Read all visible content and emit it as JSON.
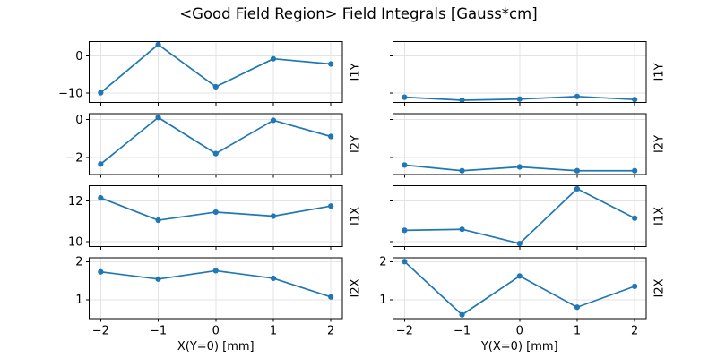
{
  "figure": {
    "title": "<Good Field Region> Field Integrals [Gauss*cm]",
    "background_color": "#ffffff",
    "line_color": "#1f77b4",
    "marker_color": "#1f77b4",
    "grid_color": "#e3e3e3",
    "spine_color": "#000000",
    "xlabel_left": "X(Y=0) [mm]",
    "xlabel_right": "Y(X=0) [mm]",
    "row_labels": [
      "I1Y",
      "I2Y",
      "I1X",
      "I2X"
    ]
  },
  "chart_data": [
    {
      "id": "i1y-vs-x",
      "type": "line",
      "row": 0,
      "col": 0,
      "ylabel_right": "I1Y",
      "x": [
        -2,
        -1,
        0,
        1,
        2
      ],
      "y": [
        -9.9,
        3.0,
        -8.3,
        -0.8,
        -2.2
      ],
      "xlim": [
        -2.2,
        2.2
      ],
      "ylim": [
        -12.5,
        3.8
      ],
      "xticks": [
        -2,
        -1,
        0,
        1,
        2
      ],
      "yticks": [
        0,
        -10
      ],
      "xtick_labels": [
        "−2",
        "−1",
        "0",
        "1",
        "2"
      ],
      "ytick_labels": [
        "0",
        "−10"
      ],
      "show_xtick_labels": false,
      "show_ytick_labels": true,
      "grid": true
    },
    {
      "id": "i1y-vs-y",
      "type": "line",
      "row": 0,
      "col": 1,
      "ylabel_right": "I1Y",
      "x": [
        -2,
        -1,
        0,
        1,
        2
      ],
      "y": [
        -11.1,
        -11.9,
        -11.6,
        -10.9,
        -11.7
      ],
      "xlim": [
        -2.2,
        2.2
      ],
      "ylim": [
        -12.5,
        3.8
      ],
      "xticks": [
        -2,
        -1,
        0,
        1,
        2
      ],
      "yticks": [
        0,
        -10
      ],
      "xtick_labels": [
        "−2",
        "−1",
        "0",
        "1",
        "2"
      ],
      "ytick_labels": [
        "0",
        "−10"
      ],
      "show_xtick_labels": false,
      "show_ytick_labels": false,
      "grid": true
    },
    {
      "id": "i2y-vs-x",
      "type": "line",
      "row": 1,
      "col": 0,
      "ylabel_right": "I2Y",
      "x": [
        -2,
        -1,
        0,
        1,
        2
      ],
      "y": [
        -2.35,
        0.1,
        -1.8,
        -0.05,
        -0.9
      ],
      "xlim": [
        -2.2,
        2.2
      ],
      "ylim": [
        -2.9,
        0.3
      ],
      "xticks": [
        -2,
        -1,
        0,
        1,
        2
      ],
      "yticks": [
        0,
        -2
      ],
      "xtick_labels": [
        "−2",
        "−1",
        "0",
        "1",
        "2"
      ],
      "ytick_labels": [
        "0",
        "−2"
      ],
      "show_xtick_labels": false,
      "show_ytick_labels": true,
      "grid": true
    },
    {
      "id": "i2y-vs-y",
      "type": "line",
      "row": 1,
      "col": 1,
      "ylabel_right": "I2Y",
      "x": [
        -2,
        -1,
        0,
        1,
        2
      ],
      "y": [
        -2.4,
        -2.7,
        -2.5,
        -2.7,
        -2.7
      ],
      "xlim": [
        -2.2,
        2.2
      ],
      "ylim": [
        -2.9,
        0.3
      ],
      "xticks": [
        -2,
        -1,
        0,
        1,
        2
      ],
      "yticks": [
        0,
        -2
      ],
      "xtick_labels": [
        "−2",
        "−1",
        "0",
        "1",
        "2"
      ],
      "ytick_labels": [
        "0",
        "−2"
      ],
      "show_xtick_labels": false,
      "show_ytick_labels": false,
      "grid": true
    },
    {
      "id": "i1x-vs-x",
      "type": "line",
      "row": 2,
      "col": 0,
      "ylabel_right": "I1X",
      "x": [
        -2,
        -1,
        0,
        1,
        2
      ],
      "y": [
        12.15,
        11.05,
        11.45,
        11.25,
        11.75
      ],
      "xlim": [
        -2.2,
        2.2
      ],
      "ylim": [
        9.75,
        12.75
      ],
      "xticks": [
        -2,
        -1,
        0,
        1,
        2
      ],
      "yticks": [
        12,
        10
      ],
      "xtick_labels": [
        "−2",
        "−1",
        "0",
        "1",
        "2"
      ],
      "ytick_labels": [
        "12",
        "10"
      ],
      "show_xtick_labels": false,
      "show_ytick_labels": true,
      "grid": true
    },
    {
      "id": "i1x-vs-y",
      "type": "line",
      "row": 2,
      "col": 1,
      "ylabel_right": "I1X",
      "x": [
        -2,
        -1,
        0,
        1,
        2
      ],
      "y": [
        10.55,
        10.6,
        9.9,
        12.6,
        11.15
      ],
      "xlim": [
        -2.2,
        2.2
      ],
      "ylim": [
        9.75,
        12.75
      ],
      "xticks": [
        -2,
        -1,
        0,
        1,
        2
      ],
      "yticks": [
        12,
        10
      ],
      "xtick_labels": [
        "−2",
        "−1",
        "0",
        "1",
        "2"
      ],
      "ytick_labels": [
        "12",
        "10"
      ],
      "show_xtick_labels": false,
      "show_ytick_labels": false,
      "grid": true
    },
    {
      "id": "i2x-vs-x",
      "type": "line",
      "row": 3,
      "col": 0,
      "ylabel_right": "I2X",
      "x": [
        -2,
        -1,
        0,
        1,
        2
      ],
      "y": [
        1.73,
        1.54,
        1.76,
        1.56,
        1.07
      ],
      "xlim": [
        -2.2,
        2.2
      ],
      "ylim": [
        0.5,
        2.1
      ],
      "xticks": [
        -2,
        -1,
        0,
        1,
        2
      ],
      "yticks": [
        2,
        1
      ],
      "xtick_labels": [
        "−2",
        "−1",
        "0",
        "1",
        "2"
      ],
      "ytick_labels": [
        "2",
        "1"
      ],
      "show_xtick_labels": true,
      "show_ytick_labels": true,
      "grid": true
    },
    {
      "id": "i2x-vs-y",
      "type": "line",
      "row": 3,
      "col": 1,
      "ylabel_right": "I2X",
      "x": [
        -2,
        -1,
        0,
        1,
        2
      ],
      "y": [
        2.0,
        0.6,
        1.62,
        0.8,
        1.35
      ],
      "xlim": [
        -2.2,
        2.2
      ],
      "ylim": [
        0.5,
        2.1
      ],
      "xticks": [
        -2,
        -1,
        0,
        1,
        2
      ],
      "yticks": [
        2,
        1
      ],
      "xtick_labels": [
        "−2",
        "−1",
        "0",
        "1",
        "2"
      ],
      "ytick_labels": [
        "2",
        "1"
      ],
      "show_xtick_labels": true,
      "show_ytick_labels": true,
      "grid": true
    }
  ]
}
